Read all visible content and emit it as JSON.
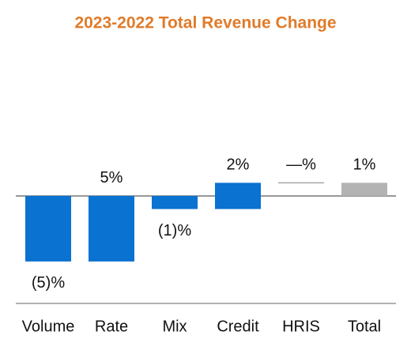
{
  "chart_data": {
    "type": "waterfall",
    "title": "2023-2022 Total Revenue Change",
    "categories": [
      "Volume",
      "Rate",
      "Mix",
      "Credit",
      "HRIS",
      "Total"
    ],
    "values": [
      -5,
      5,
      -1,
      2,
      0,
      1
    ],
    "value_labels": [
      "(5)%",
      "5%",
      "(1)%",
      "2%",
      "—%",
      "1%"
    ],
    "colors": [
      "#0a72d0",
      "#0a72d0",
      "#0a72d0",
      "#0a72d0",
      "#a6a6a6",
      "#b3b3b3"
    ],
    "ylim": [
      -8.2,
      6
    ]
  }
}
